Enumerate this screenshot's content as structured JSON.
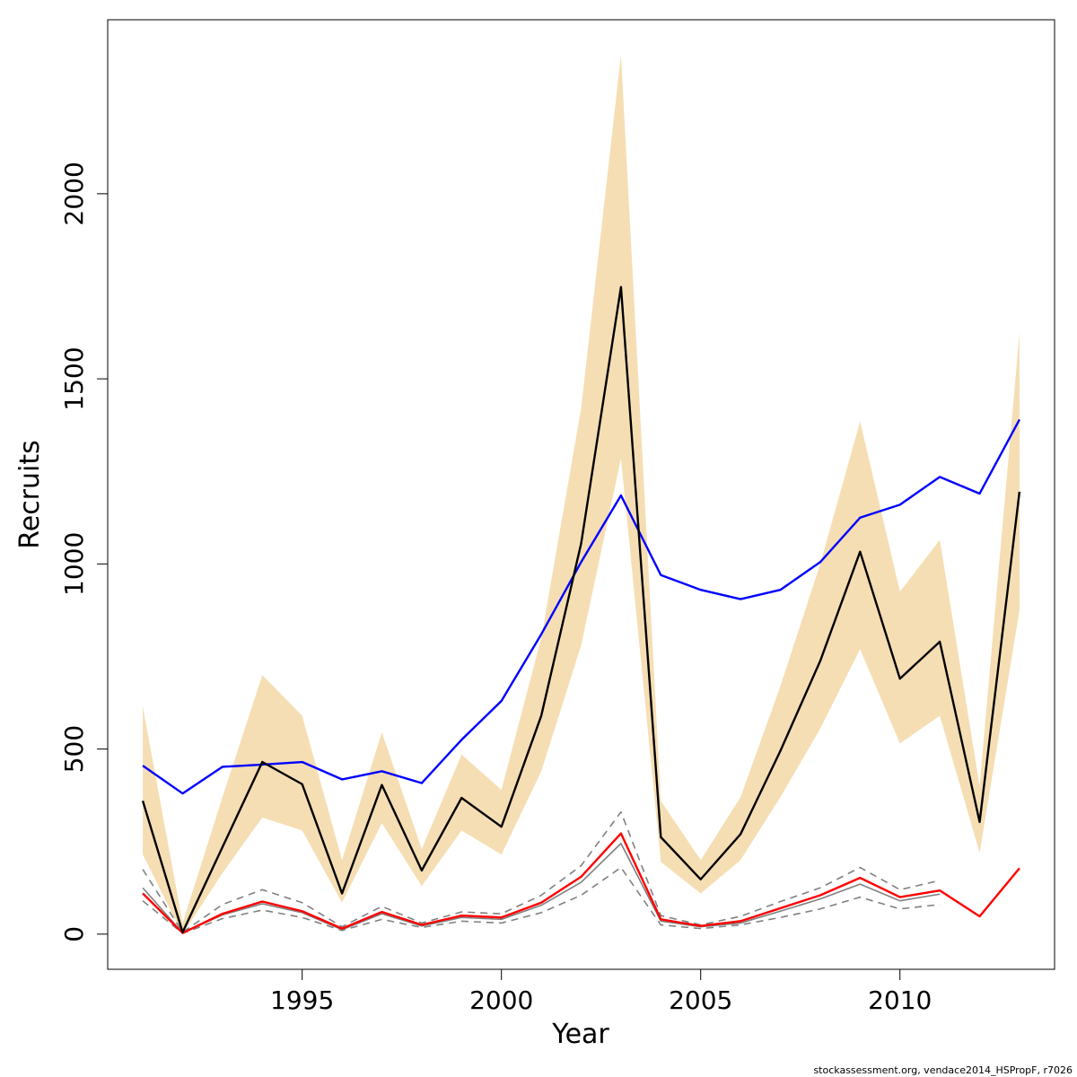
{
  "chart_data": {
    "type": "line",
    "xlabel": "Year",
    "ylabel": "Recruits",
    "footer": "stockassessment.org, vendace2014_HSPropF, r7026",
    "x": [
      1991,
      1992,
      1993,
      1994,
      1995,
      1996,
      1997,
      1998,
      1999,
      2000,
      2001,
      2002,
      2003,
      2004,
      2005,
      2006,
      2007,
      2008,
      2009,
      2010,
      2011,
      2012,
      2013
    ],
    "xlim": [
      1990.12,
      2013.88
    ],
    "xticks": [
      1995,
      2000,
      2005,
      2010
    ],
    "ylim": [
      -95,
      2470
    ],
    "yticks": [
      0,
      500,
      1000,
      1500,
      2000
    ],
    "band": {
      "color": "#f5deb3",
      "upper": [
        615,
        30,
        370,
        700,
        590,
        200,
        545,
        230,
        485,
        390,
        800,
        1420,
        2375,
        360,
        200,
        370,
        670,
        1000,
        1385,
        925,
        1065,
        400,
        1625
      ],
      "lower": [
        215,
        0,
        165,
        315,
        280,
        85,
        300,
        130,
        280,
        215,
        440,
        780,
        1285,
        195,
        110,
        200,
        370,
        555,
        770,
        515,
        590,
        220,
        875
      ]
    },
    "series": [
      {
        "color": "#808080",
        "dashed": true,
        "values": [
          175,
          5,
          80,
          120,
          85,
          20,
          75,
          30,
          60,
          55,
          105,
          185,
          330,
          50,
          25,
          48,
          88,
          125,
          180,
          120,
          145,
          null,
          null
        ]
      },
      {
        "color": "#808080",
        "dashed": true,
        "values": [
          90,
          2,
          42,
          65,
          45,
          10,
          40,
          18,
          35,
          30,
          58,
          105,
          180,
          25,
          15,
          25,
          45,
          68,
          100,
          68,
          80,
          null,
          null
        ]
      },
      {
        "color": "#808080",
        "dashed": false,
        "values": [
          125,
          3,
          52,
          82,
          58,
          12,
          55,
          22,
          45,
          40,
          78,
          140,
          245,
          35,
          20,
          30,
          62,
          95,
          135,
          90,
          108,
          null,
          null
        ]
      },
      {
        "color": "#ff0000",
        "dashed": false,
        "values": [
          110,
          3,
          55,
          88,
          62,
          15,
          60,
          25,
          50,
          45,
          85,
          155,
          272,
          40,
          22,
          35,
          70,
          105,
          152,
          100,
          118,
          48,
          178
        ]
      },
      {
        "color": "#0000ff",
        "dashed": false,
        "values": [
          455,
          380,
          452,
          458,
          465,
          418,
          440,
          408,
          525,
          630,
          810,
          1005,
          1185,
          970,
          930,
          905,
          930,
          1005,
          1125,
          1160,
          1235,
          1190,
          1390
        ]
      },
      {
        "color": "#000000",
        "dashed": false,
        "values": [
          360,
          5,
          235,
          465,
          405,
          110,
          403,
          172,
          368,
          290,
          590,
          1055,
          1748,
          262,
          148,
          270,
          495,
          738,
          1033,
          690,
          790,
          303,
          1195
        ]
      }
    ]
  }
}
